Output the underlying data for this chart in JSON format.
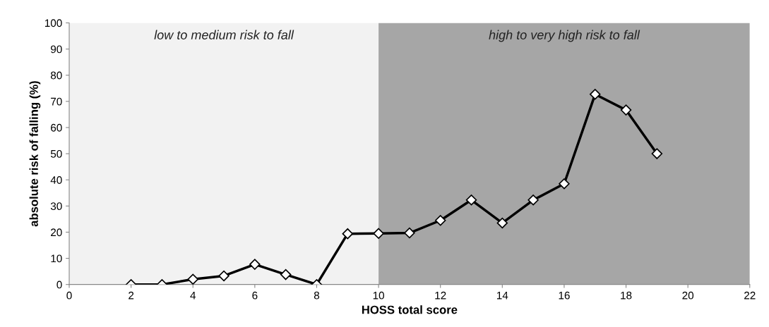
{
  "chart_data": {
    "type": "line",
    "xlabel": "HOSS total score",
    "ylabel": "absolute risk of falling (%)",
    "x": [
      2,
      3,
      4,
      5,
      6,
      7,
      8,
      9,
      10,
      11,
      12,
      13,
      14,
      15,
      16,
      17,
      18,
      19
    ],
    "series": [
      {
        "color": "#000000",
        "values": [
          0,
          0,
          2,
          3.3,
          7.7,
          3.8,
          0,
          19.4,
          19.5,
          19.7,
          24.5,
          32.3,
          23.5,
          32.3,
          38.5,
          72.7,
          66.7,
          50
        ]
      }
    ],
    "xlim": [
      0,
      22
    ],
    "xticks": [
      0,
      2,
      4,
      6,
      8,
      10,
      12,
      14,
      16,
      18,
      20,
      22
    ],
    "ylim": [
      0,
      100
    ],
    "yticks": [
      0,
      10,
      20,
      30,
      40,
      50,
      60,
      70,
      80,
      90,
      100
    ],
    "bands": [
      {
        "axis": "x",
        "from": 0,
        "to": 10,
        "label": "low to medium risk to fall",
        "color": "#f2f2f2"
      },
      {
        "axis": "x",
        "from": 10,
        "to": 22,
        "label": "high to very high risk to fall",
        "color": "#a6a6a6"
      }
    ],
    "marker": "diamond",
    "line_style": "solid",
    "grid": false,
    "legend": false
  }
}
